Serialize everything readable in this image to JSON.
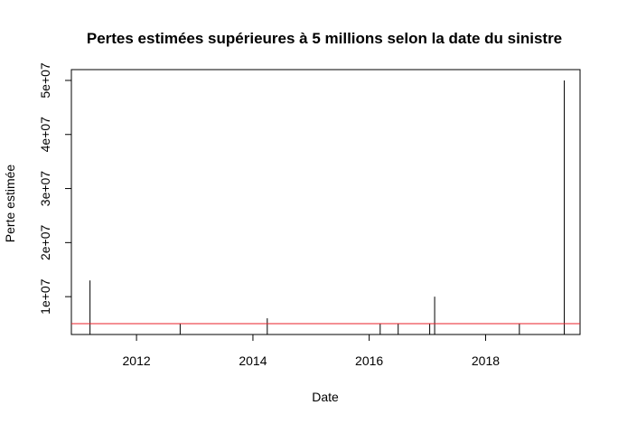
{
  "chart_data": {
    "type": "bar",
    "title": "Pertes estimées supérieures à 5 millions selon la date du sinistre",
    "xlabel": "Date",
    "ylabel": "Perte estimée",
    "x_ticks": [
      "2012",
      "2014",
      "2016",
      "2018"
    ],
    "y_ticks": [
      "1e+07",
      "2e+07",
      "3e+07",
      "4e+07",
      "5e+07"
    ],
    "xlim": [
      "2010-11-18",
      "2019-08-17"
    ],
    "ylim": [
      3000000,
      52000000
    ],
    "threshold": 5000000,
    "threshold_color": "#e8202a",
    "series": [
      {
        "x": [
          "2011-03-15",
          "2012-10-01",
          "2014-04-01",
          "2016-03-10",
          "2016-07-01",
          "2017-01-15",
          "2017-02-15",
          "2018-08-01",
          "2019-05-10"
        ],
        "values": [
          13000000,
          5000000,
          6000000,
          5000000,
          5000000,
          5000000,
          10000000,
          5000000,
          50000000
        ]
      }
    ]
  }
}
